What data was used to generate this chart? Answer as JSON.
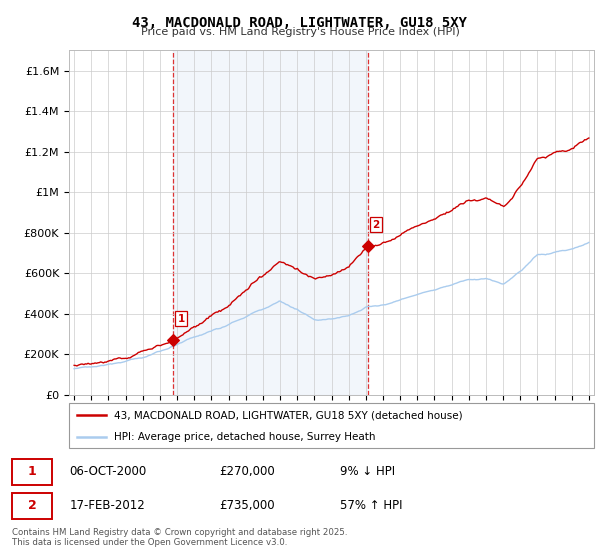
{
  "title": "43, MACDONALD ROAD, LIGHTWATER, GU18 5XY",
  "subtitle": "Price paid vs. HM Land Registry's House Price Index (HPI)",
  "ylim": [
    0,
    1700000
  ],
  "yticks": [
    0,
    200000,
    400000,
    600000,
    800000,
    1000000,
    1200000,
    1400000,
    1600000
  ],
  "year_start": 1995,
  "year_end": 2025,
  "sale1_year": 2000.77,
  "sale1_price": 270000,
  "sale2_year": 2012.12,
  "sale2_price": 735000,
  "hpi_color": "#aaccee",
  "price_color": "#cc0000",
  "dashed_line_color": "#dd3333",
  "background_fill": "#ccddf0",
  "legend1": "43, MACDONALD ROAD, LIGHTWATER, GU18 5XY (detached house)",
  "legend2": "HPI: Average price, detached house, Surrey Heath",
  "info1_num": "1",
  "info1_date": "06-OCT-2000",
  "info1_price": "£270,000",
  "info1_hpi": "9% ↓ HPI",
  "info2_num": "2",
  "info2_date": "17-FEB-2012",
  "info2_price": "£735,000",
  "info2_hpi": "57% ↑ HPI",
  "footnote": "Contains HM Land Registry data © Crown copyright and database right 2025.\nThis data is licensed under the Open Government Licence v3.0."
}
